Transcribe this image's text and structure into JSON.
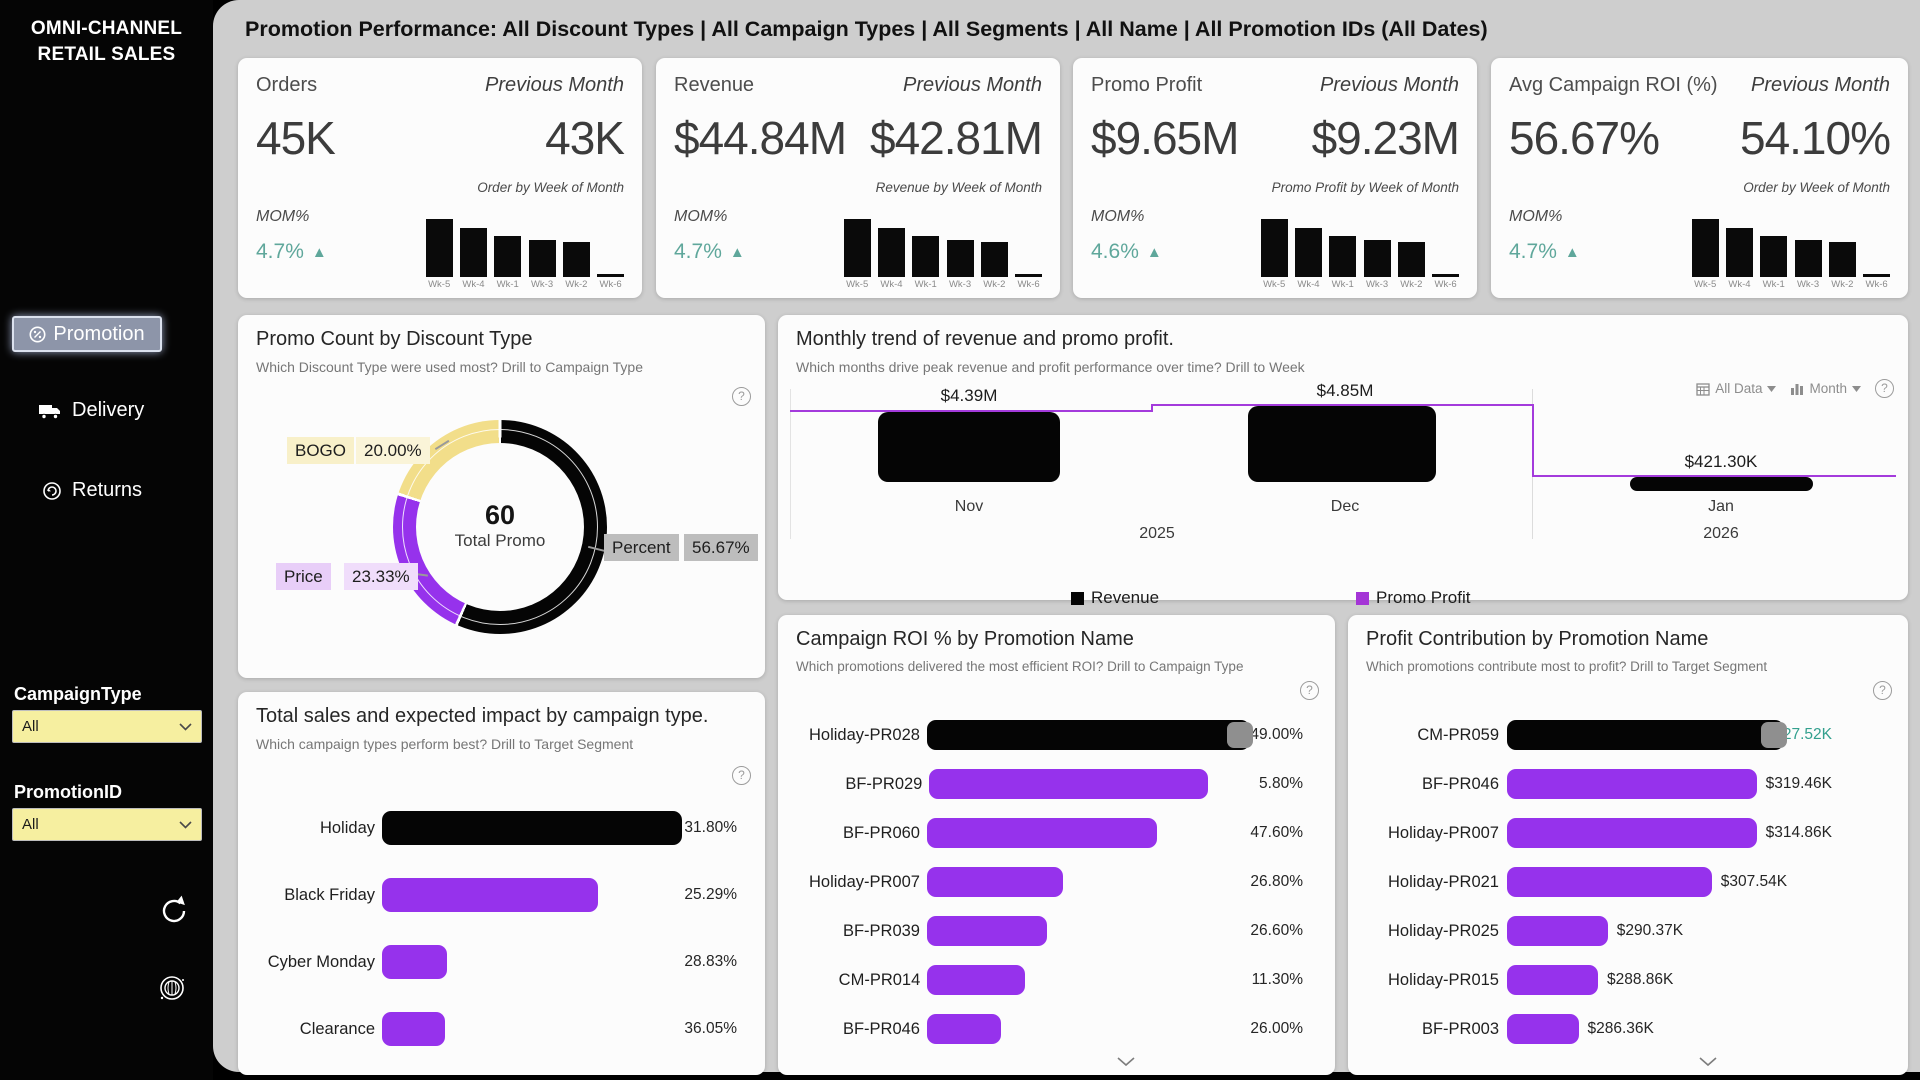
{
  "colors": {
    "purple": "#9632EC",
    "purple_line": "#A43BDC",
    "teal_mom": "#5FA79B",
    "teal_value": "#33A08E",
    "yellow_slice": "#F2DE8A",
    "black": "#050505",
    "page_bg": "#CECECE"
  },
  "sidebar": {
    "title_line1": "OMNI-CHANNEL",
    "title_line2": "RETAIL SALES",
    "nav": [
      {
        "label": "Promotion",
        "icon": "discount-badge-icon",
        "active": true
      },
      {
        "label": "Delivery",
        "icon": "truck-icon",
        "active": false
      },
      {
        "label": "Returns",
        "icon": "return-arrow-icon",
        "active": false
      }
    ],
    "filters": [
      {
        "label": "CampaignType",
        "value": "All"
      },
      {
        "label": "PromotionID",
        "value": "All"
      }
    ]
  },
  "header": {
    "title": "Promotion Performance: All Discount Types | All Campaign Types | All Segments | All Name | All Promotion IDs (All Dates)"
  },
  "kpis": [
    {
      "label": "Orders",
      "value": "45K",
      "prev_label": "Previous Month",
      "prev_value": "43K",
      "spark_title": "Order by Week of Month",
      "mom_label": "MOM%",
      "mom": "4.7%",
      "arrow": "▲"
    },
    {
      "label": "Revenue",
      "value": "$44.84M",
      "prev_label": "Previous Month",
      "prev_value": "$42.81M",
      "spark_title": "Revenue by Week of Month",
      "mom_label": "MOM%",
      "mom": "4.7%",
      "arrow": "▲"
    },
    {
      "label": "Promo Profit",
      "value": "$9.65M",
      "prev_label": "Previous Month",
      "prev_value": "$9.23M",
      "spark_title": "Promo Profit by Week of Month",
      "mom_label": "MOM%",
      "mom": "4.6%",
      "arrow": "▲"
    },
    {
      "label": "Avg Campaign ROI (%)",
      "value": "56.67%",
      "prev_label": "Previous Month",
      "prev_value": "54.10%",
      "spark_title": "Order by Week of Month",
      "mom_label": "MOM%",
      "mom": "4.7%",
      "arrow": "▲"
    }
  ],
  "spark": {
    "categories": [
      "Wk-5",
      "Wk-4",
      "Wk-1",
      "Wk-3",
      "Wk-2",
      "Wk-6"
    ],
    "heights": [
      1,
      0.85,
      0.7,
      0.63,
      0.6,
      0.05
    ]
  },
  "donut": {
    "title": "Promo Count by Discount Type",
    "subtitle": "Which Discount Type were used most? Drill to Campaign Type",
    "center_value": "60",
    "center_label": "Total Promo",
    "slices": [
      {
        "label": "Percent",
        "pct": "56.67%",
        "value": 56.67,
        "color": "#050505"
      },
      {
        "label": "Price",
        "pct": "23.33%",
        "value": 23.33,
        "color": "#9632EC"
      },
      {
        "label": "BOGO",
        "pct": "20.00%",
        "value": 20.0,
        "color": "#F2DE8A"
      }
    ]
  },
  "trend": {
    "title": "Monthly trend of revenue and promo profit.",
    "subtitle": "Which months drive peak revenue and profit performance over time? Drill to Week",
    "controls": {
      "data_label": "All Data",
      "granularity_label": "Month"
    },
    "points": [
      {
        "month": "Nov",
        "profit_label": "$4.39M"
      },
      {
        "month": "Dec",
        "profit_label": "$4.85M"
      },
      {
        "month": "Jan",
        "profit_label": "$421.30K"
      }
    ],
    "years": [
      "2025",
      "2026"
    ],
    "legend": [
      {
        "label": "Revenue"
      },
      {
        "label": "Promo Profit"
      }
    ]
  },
  "campaign_bar": {
    "title": "Total sales and expected impact by campaign type.",
    "subtitle": "Which campaign types perform best? Drill to Target Segment",
    "rows": [
      {
        "label": "Holiday",
        "value": "31.80%",
        "len": 1.0
      },
      {
        "label": "Black Friday",
        "value": "25.29%",
        "len": 0.72
      },
      {
        "label": "Cyber Monday",
        "value": "28.83%",
        "len": 0.215
      },
      {
        "label": "Clearance",
        "value": "36.05%",
        "len": 0.21
      }
    ]
  },
  "roi_bar": {
    "title": "Campaign ROI % by Promotion Name",
    "subtitle": "Which promotions delivered the most efficient ROI? Drill to Campaign Type",
    "rows": [
      {
        "label": "Holiday-PR028",
        "value": "49.00%",
        "len": 1.0
      },
      {
        "label": "BF-PR029",
        "value": "5.80%",
        "len": 0.845
      },
      {
        "label": "BF-PR060",
        "value": "47.60%",
        "len": 0.71
      },
      {
        "label": "Holiday-PR007",
        "value": "26.80%",
        "len": 0.42
      },
      {
        "label": "BF-PR039",
        "value": "26.60%",
        "len": 0.37
      },
      {
        "label": "CM-PR014",
        "value": "11.30%",
        "len": 0.3
      },
      {
        "label": "BF-PR046",
        "value": "26.00%",
        "len": 0.23
      }
    ]
  },
  "profit_bar": {
    "title": "Profit Contribution by Promotion Name",
    "subtitle": "Which promotions contribute most to profit? Drill to Target Segment",
    "rows": [
      {
        "label": "CM-PR059",
        "value": "$327.52K",
        "len": 1.0
      },
      {
        "label": "BF-PR046",
        "value": "$319.46K",
        "len": 0.86
      },
      {
        "label": "Holiday-PR007",
        "value": "$314.86K",
        "len": 0.77
      },
      {
        "label": "Holiday-PR021",
        "value": "$307.54K",
        "len": 0.63
      },
      {
        "label": "Holiday-PR025",
        "value": "$290.37K",
        "len": 0.31
      },
      {
        "label": "Holiday-PR015",
        "value": "$288.86K",
        "len": 0.28
      },
      {
        "label": "BF-PR003",
        "value": "$286.36K",
        "len": 0.22
      }
    ]
  },
  "chart_data": [
    {
      "type": "pie",
      "title": "Promo Count by Discount Type",
      "categories": [
        "Percent",
        "Price",
        "BOGO"
      ],
      "values": [
        56.67,
        23.33,
        20.0
      ],
      "center_total": 60,
      "units": "percent of 60 total promos"
    },
    {
      "type": "line",
      "title": "Monthly trend of revenue and promo profit.",
      "x": [
        "Nov 2025",
        "Dec 2025",
        "Jan 2026"
      ],
      "series": [
        {
          "name": "Promo Profit",
          "values": [
            4390000,
            4850000,
            421300
          ]
        },
        {
          "name": "Revenue",
          "values_relative": [
            0.92,
            1.0,
            0.18
          ],
          "note": "black bars, values not labeled"
        }
      ],
      "legend_position": "bottom"
    },
    {
      "type": "bar",
      "title": "Total sales and expected impact by campaign type.",
      "categories": [
        "Holiday",
        "Black Friday",
        "Cyber Monday",
        "Clearance"
      ],
      "values": [
        31.8,
        25.29,
        28.83,
        36.05
      ],
      "bar_length_relative": [
        1.0,
        0.72,
        0.215,
        0.21
      ],
      "ylabel": "expected impact %"
    },
    {
      "type": "bar",
      "title": "Campaign ROI % by Promotion Name",
      "categories": [
        "Holiday-PR028",
        "BF-PR029",
        "BF-PR060",
        "Holiday-PR007",
        "BF-PR039",
        "CM-PR014",
        "BF-PR046"
      ],
      "values": [
        49.0,
        5.8,
        47.6,
        26.8,
        26.6,
        11.3,
        26.0
      ],
      "bar_length_relative": [
        1.0,
        0.845,
        0.71,
        0.42,
        0.37,
        0.3,
        0.23
      ]
    },
    {
      "type": "bar",
      "title": "Profit Contribution by Promotion Name",
      "categories": [
        "CM-PR059",
        "BF-PR046",
        "Holiday-PR007",
        "Holiday-PR021",
        "Holiday-PR025",
        "Holiday-PR015",
        "BF-PR003"
      ],
      "values": [
        327520,
        319460,
        314860,
        307540,
        290370,
        288860,
        286360
      ],
      "bar_length_relative": [
        1.0,
        0.86,
        0.77,
        0.63,
        0.31,
        0.28,
        0.22
      ]
    },
    {
      "type": "bar",
      "title": "KPI sparkline – Order/Revenue/Profit by Week of Month",
      "categories": [
        "Wk-5",
        "Wk-4",
        "Wk-1",
        "Wk-3",
        "Wk-2",
        "Wk-6"
      ],
      "values_relative": [
        1,
        0.85,
        0.7,
        0.63,
        0.6,
        0.05
      ]
    }
  ]
}
